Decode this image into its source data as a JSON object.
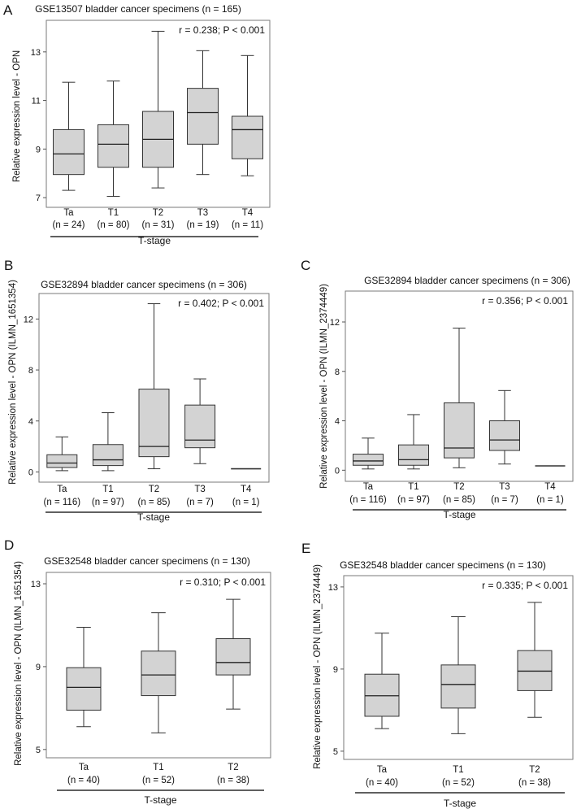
{
  "chart_data": [
    {
      "type": "box",
      "panel": "A",
      "title": "GSE13507 bladder cancer specimens (n = 165)",
      "stat": "r = 0.238; P < 0.001",
      "ylabel": "Relative expression level - OPN",
      "xlabel": "T-stage",
      "yticks": [
        7,
        9,
        11,
        13
      ],
      "ylim": [
        6.6,
        14.3
      ],
      "categories": [
        "Ta",
        "T1",
        "T2",
        "T3",
        "T4"
      ],
      "n_labels": [
        "(n = 24)",
        "(n = 80)",
        "(n = 31)",
        "(n = 19)",
        "(n = 11)"
      ],
      "boxes": [
        {
          "min": 7.3,
          "q1": 7.95,
          "median": 8.8,
          "q3": 9.8,
          "max": 11.75
        },
        {
          "min": 7.05,
          "q1": 8.25,
          "median": 9.2,
          "q3": 10.0,
          "max": 11.8
        },
        {
          "min": 7.4,
          "q1": 8.25,
          "median": 9.4,
          "q3": 10.55,
          "max": 13.85
        },
        {
          "min": 7.95,
          "q1": 9.2,
          "median": 10.5,
          "q3": 11.5,
          "max": 13.05
        },
        {
          "min": 7.9,
          "q1": 8.6,
          "median": 9.8,
          "q3": 10.35,
          "max": 12.85
        }
      ]
    },
    {
      "type": "box",
      "panel": "B",
      "title": "GSE32894 bladder cancer specimens (n = 306)",
      "stat": "r = 0.402; P < 0.001",
      "ylabel": "Relative expression level - OPN (ILMN_1651354)",
      "xlabel": "T-stage",
      "yticks": [
        0,
        4,
        8,
        12
      ],
      "ylim": [
        -0.8,
        14
      ],
      "categories": [
        "Ta",
        "T1",
        "T2",
        "T3",
        "T4"
      ],
      "n_labels": [
        "(n = 116)",
        "(n = 97)",
        "(n = 85)",
        "(n = 7)",
        "(n = 1)"
      ],
      "boxes": [
        {
          "min": 0.1,
          "q1": 0.35,
          "median": 0.7,
          "q3": 1.35,
          "max": 2.75
        },
        {
          "min": 0.1,
          "q1": 0.5,
          "median": 0.95,
          "q3": 2.15,
          "max": 4.65
        },
        {
          "min": 0.25,
          "q1": 1.2,
          "median": 2.0,
          "q3": 6.5,
          "max": 13.2
        },
        {
          "min": 0.65,
          "q1": 1.9,
          "median": 2.5,
          "q3": 5.25,
          "max": 7.3
        },
        {
          "min": 0.25,
          "q1": 0.25,
          "median": 0.25,
          "q3": 0.25,
          "max": 0.25
        }
      ]
    },
    {
      "type": "box",
      "panel": "C",
      "title": "GSE32894 bladder cancer specimens (n = 306)",
      "stat": "r = 0.356; P < 0.001",
      "ylabel": "Relative expression level - OPN (ILMN_2374449)",
      "xlabel": "T-stage",
      "yticks": [
        0,
        4,
        8,
        12
      ],
      "ylim": [
        -0.9,
        14.5
      ],
      "categories": [
        "Ta",
        "T1",
        "T2",
        "T3",
        "T4"
      ],
      "n_labels": [
        "(n = 116)",
        "(n = 97)",
        "(n = 85)",
        "(n = 7)",
        "(n = 1)"
      ],
      "boxes": [
        {
          "min": 0.1,
          "q1": 0.4,
          "median": 0.75,
          "q3": 1.3,
          "max": 2.6
        },
        {
          "min": 0.1,
          "q1": 0.4,
          "median": 0.85,
          "q3": 2.05,
          "max": 4.5
        },
        {
          "min": 0.2,
          "q1": 1.0,
          "median": 1.8,
          "q3": 5.45,
          "max": 11.5
        },
        {
          "min": 0.5,
          "q1": 1.6,
          "median": 2.45,
          "q3": 4.0,
          "max": 6.45
        },
        {
          "min": 0.35,
          "q1": 0.35,
          "median": 0.35,
          "q3": 0.35,
          "max": 0.35
        }
      ]
    },
    {
      "type": "box",
      "panel": "D",
      "title": "GSE32548 bladder cancer specimens (n = 130)",
      "stat": "r = 0.310; P < 0.001",
      "ylabel": "Relative expression level - OPN (ILMN_1651354)",
      "xlabel": "T-stage",
      "yticks": [
        5,
        9,
        13
      ],
      "ylim": [
        4.6,
        13.55
      ],
      "categories": [
        "Ta",
        "T1",
        "T2"
      ],
      "n_labels": [
        "(n = 40)",
        "(n = 52)",
        "(n = 38)"
      ],
      "boxes": [
        {
          "min": 6.1,
          "q1": 6.9,
          "median": 8.0,
          "q3": 8.95,
          "max": 10.9
        },
        {
          "min": 5.8,
          "q1": 7.6,
          "median": 8.6,
          "q3": 9.75,
          "max": 11.6
        },
        {
          "min": 6.95,
          "q1": 8.6,
          "median": 9.2,
          "q3": 10.35,
          "max": 12.25
        }
      ]
    },
    {
      "type": "box",
      "panel": "E",
      "title": "GSE32548 bladder cancer specimens (n = 130)",
      "stat": "r = 0.335; P < 0.001",
      "ylabel": "Relative expression level - OPN (ILMN_2374449)",
      "xlabel": "T-stage",
      "yticks": [
        5,
        9,
        13
      ],
      "ylim": [
        4.6,
        13.55
      ],
      "categories": [
        "Ta",
        "T1",
        "T2"
      ],
      "n_labels": [
        "(n = 40)",
        "(n = 52)",
        "(n = 38)"
      ],
      "boxes": [
        {
          "min": 6.1,
          "q1": 6.7,
          "median": 7.7,
          "q3": 8.75,
          "max": 10.75
        },
        {
          "min": 5.85,
          "q1": 7.1,
          "median": 8.25,
          "q3": 9.2,
          "max": 11.55
        },
        {
          "min": 6.65,
          "q1": 7.95,
          "median": 8.9,
          "q3": 9.9,
          "max": 12.25
        }
      ]
    }
  ]
}
